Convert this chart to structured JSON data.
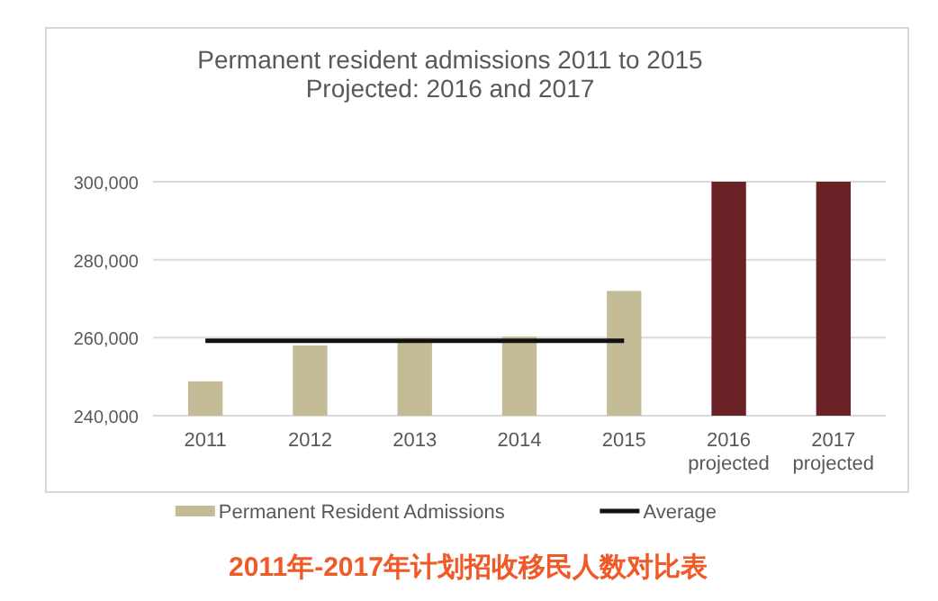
{
  "chart_data": {
    "type": "bar",
    "title": "Permanent resident admissions 2011 to 2015\nProjected: 2016 and 2017",
    "categories": [
      "2011",
      "2012",
      "2013",
      "2014",
      "2015",
      "2016\nprojected",
      "2017\nprojected"
    ],
    "series": [
      {
        "name": "Permanent Resident Admissions",
        "color": "#c4bc96",
        "colors": [
          "#c4bc96",
          "#c4bc96",
          "#c4bc96",
          "#c4bc96",
          "#c4bc96",
          "#6b2226",
          "#6b2226"
        ],
        "values": [
          248800,
          258000,
          259000,
          260300,
          272000,
          300000,
          300000
        ]
      },
      {
        "name": "Average",
        "type": "line",
        "color": "#111111",
        "values": [
          259200,
          259200,
          259200,
          259200,
          259200,
          null,
          null
        ]
      }
    ],
    "ylim": [
      240000,
      300000
    ],
    "yticks": [
      {
        "value": 240000,
        "label": "240,000"
      },
      {
        "value": 260000,
        "label": "260,000"
      },
      {
        "value": 280000,
        "label": "280,000"
      },
      {
        "value": 300000,
        "label": "300,000"
      }
    ],
    "grid": "y",
    "legend": "bottom",
    "annotations": [
      "2011年-2017年计划招收移民人数对比表"
    ]
  }
}
